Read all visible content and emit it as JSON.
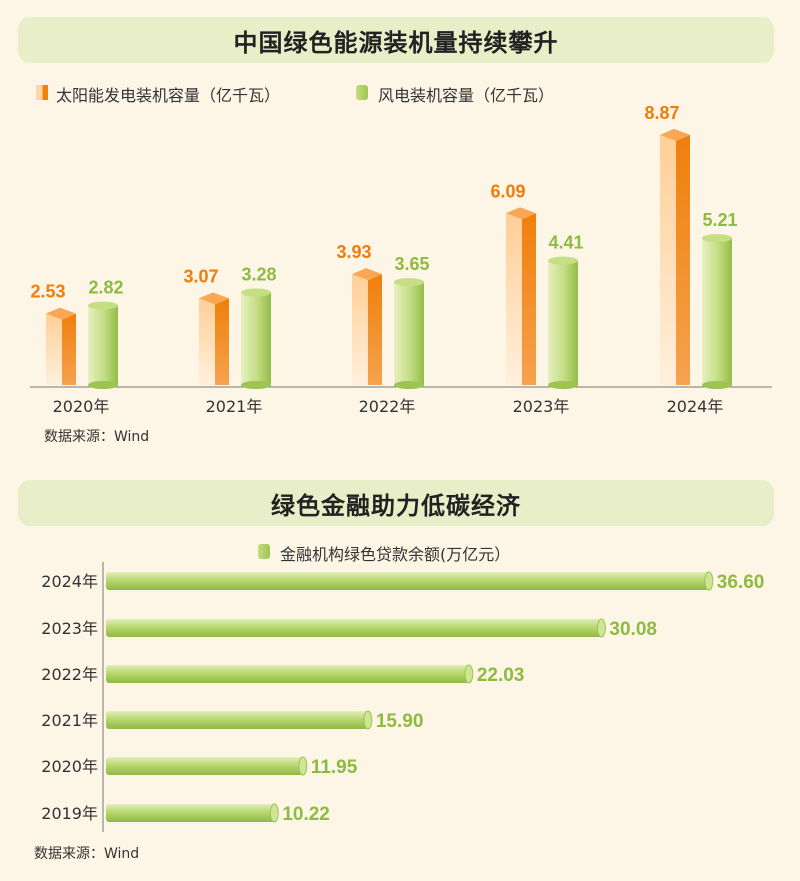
{
  "source_note": "数据来源：Wind",
  "colors": {
    "solar_front": "#ffd6a3",
    "solar_side": "#ef7f0c",
    "solar_top": "#f9a754",
    "solar_label": "#ee7d0a",
    "wind_light": "#cfe494",
    "wind_dark": "#9cc451",
    "wind_top": "#c6de84",
    "wind_label": "#8dbb3f",
    "banner": "#e7eec8"
  },
  "chart_data": [
    {
      "type": "bar",
      "title": "中国绿色能源装机量持续攀升",
      "categories": [
        "2020年",
        "2021年",
        "2022年",
        "2023年",
        "2024年"
      ],
      "series": [
        {
          "name": "太阳能发电装机容量（亿千瓦）",
          "values": [
            2.53,
            3.07,
            3.93,
            6.09,
            8.87
          ],
          "labels": [
            "2.53",
            "3.07",
            "3.93",
            "6.09",
            "8.87"
          ]
        },
        {
          "name": "风电装机容量（亿千瓦）",
          "values": [
            2.82,
            3.28,
            3.65,
            4.41,
            5.21
          ],
          "labels": [
            "2.82",
            "3.28",
            "3.65",
            "4.41",
            "5.21"
          ]
        }
      ],
      "xlabel": "",
      "ylabel": "",
      "ylim": [
        0,
        9
      ]
    },
    {
      "type": "bar",
      "orientation": "horizontal",
      "title": "绿色金融助力低碳经济",
      "categories": [
        "2024年",
        "2023年",
        "2022年",
        "2021年",
        "2020年",
        "2019年"
      ],
      "series": [
        {
          "name": "金融机构绿色贷款余额(万亿元）",
          "values": [
            36.6,
            30.08,
            22.03,
            15.9,
            11.95,
            10.22
          ],
          "labels": [
            "36.60",
            "30.08",
            "22.03",
            "15.90",
            "11.95",
            "10.22"
          ]
        }
      ],
      "xlabel": "",
      "ylabel": "",
      "xlim": [
        0,
        37
      ]
    }
  ]
}
